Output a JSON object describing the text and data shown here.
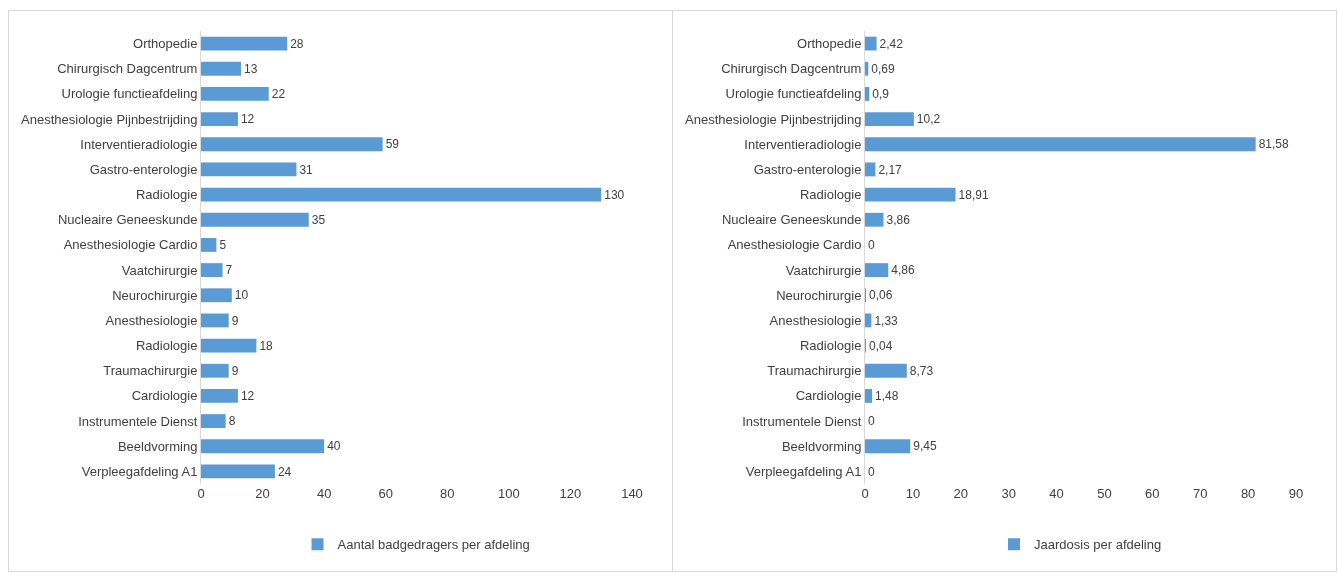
{
  "chart_data": [
    {
      "type": "bar",
      "orientation": "horizontal",
      "categories": [
        "Orthopedie",
        "Chirurgisch Dagcentrum",
        "Urologie functieafdeling",
        "Anesthesiologie Pijnbestrijding",
        "Interventieradiologie",
        "Gastro-enterologie",
        "Radiologie",
        "Nucleaire Geneeskunde",
        "Anesthesiologie Cardio",
        "Vaatchirurgie",
        "Neurochirurgie",
        "Anesthesiologie",
        "Radiologie",
        "Traumachirurgie",
        "Cardiologie",
        "Instrumentele Dienst",
        "Beeldvorming",
        "Verpleegafdeling A1"
      ],
      "series": [
        {
          "name": "Aantal badgedragers per afdeling",
          "color": "#5b9bd5",
          "values": [
            28,
            13,
            22,
            12,
            59,
            31,
            130,
            35,
            5,
            7,
            10,
            9,
            18,
            9,
            12,
            8,
            40,
            24
          ]
        }
      ],
      "xlim": [
        0,
        140
      ],
      "xticks": [
        0,
        20,
        40,
        60,
        80,
        100,
        120,
        140
      ],
      "data_labels": true,
      "legend": "bottom"
    },
    {
      "type": "bar",
      "orientation": "horizontal",
      "categories": [
        "Orthopedie",
        "Chirurgisch Dagcentrum",
        "Urologie functieafdeling",
        "Anesthesiologie Pijnbestrijding",
        "Interventieradiologie",
        "Gastro-enterologie",
        "Radiologie",
        "Nucleaire Geneeskunde",
        "Anesthesiologie Cardio",
        "Vaatchirurgie",
        "Neurochirurgie",
        "Anesthesiologie",
        "Radiologie",
        "Traumachirurgie",
        "Cardiologie",
        "Instrumentele Dienst",
        "Beeldvorming",
        "Verpleegafdeling A1"
      ],
      "series": [
        {
          "name": "Jaardosis per afdeling",
          "color": "#5b9bd5",
          "values": [
            2.42,
            0.69,
            0.9,
            10.2,
            81.58,
            2.17,
            18.91,
            3.86,
            0,
            4.86,
            0.06,
            1.33,
            0.04,
            8.73,
            1.48,
            0,
            9.45,
            0
          ],
          "value_labels": [
            "2,42",
            "0,69",
            "0,9",
            "10,2",
            "81,58",
            "2,17",
            "18,91",
            "3,86",
            "0",
            "4,86",
            "0,06",
            "1,33",
            "0,04",
            "8,73",
            "1,48",
            "0",
            "9,45",
            "0"
          ]
        }
      ],
      "xlim": [
        0,
        90
      ],
      "xticks": [
        0,
        10,
        20,
        30,
        40,
        50,
        60,
        70,
        80,
        90
      ],
      "legend": "bottom"
    }
  ]
}
